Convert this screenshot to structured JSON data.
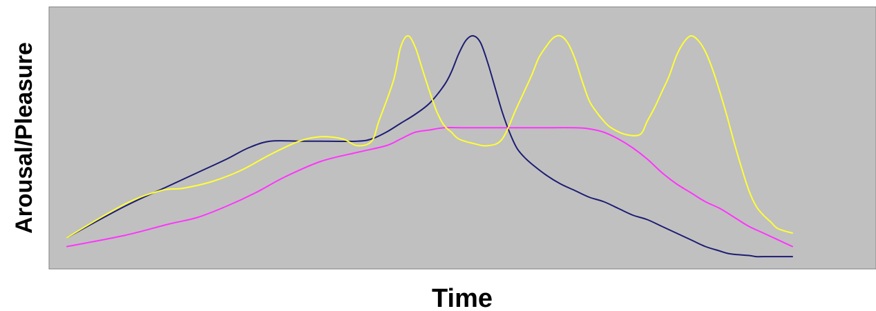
{
  "chart_data": {
    "type": "line",
    "title": "",
    "xlabel": "Time",
    "ylabel": "Arousal/Pleasure",
    "xlim": [
      0,
      100
    ],
    "ylim": [
      0,
      100
    ],
    "grid": false,
    "legend": "none",
    "background_color": "#c0c0c0",
    "series": [
      {
        "color": "#ffff33",
        "x": [
          0,
          8,
          13,
          16,
          20,
          24,
          28,
          32,
          35,
          38,
          40,
          42,
          43,
          45,
          46,
          47,
          48,
          49,
          50,
          51,
          52,
          53,
          54,
          56,
          58,
          60,
          62,
          64,
          65,
          66,
          67,
          68,
          69,
          70,
          71,
          72,
          73,
          74,
          75,
          77,
          79,
          80,
          81,
          82,
          83,
          84,
          85,
          86,
          87,
          88,
          89,
          90,
          91,
          92,
          93,
          94,
          95,
          96,
          97,
          98,
          100
        ],
        "y": [
          10,
          25,
          31,
          32,
          35,
          40,
          47,
          53,
          55,
          54,
          51,
          53,
          62,
          80,
          95,
          100,
          95,
          85,
          75,
          66,
          60,
          57,
          54,
          52,
          51,
          54,
          68,
          82,
          90,
          95,
          99,
          100,
          97,
          90,
          80,
          71,
          66,
          62,
          59,
          56,
          56,
          62,
          68,
          75,
          82,
          91,
          97,
          100,
          98,
          93,
          85,
          75,
          64,
          52,
          41,
          31,
          24,
          20,
          17,
          14,
          12
        ]
      },
      {
        "color": "#1c1c73",
        "x": [
          0,
          8,
          14,
          18,
          22,
          25,
          28,
          32,
          35,
          40,
          42,
          44,
          46,
          48,
          50,
          52,
          53,
          54,
          55,
          56,
          57,
          58,
          59,
          60,
          61,
          62,
          63,
          64,
          66,
          68,
          70,
          72,
          74,
          76,
          78,
          80,
          82,
          84,
          86,
          88,
          90,
          91,
          92,
          94,
          95,
          96,
          100
        ],
        "y": [
          10,
          24,
          33,
          39,
          45,
          50,
          53,
          53,
          53,
          53,
          54,
          57,
          61,
          65,
          70,
          78,
          84,
          92,
          98,
          100,
          97,
          88,
          77,
          66,
          57,
          50,
          46,
          43,
          38,
          34,
          31,
          28,
          26,
          23,
          20,
          18,
          15,
          12,
          9,
          6,
          4,
          3,
          2.5,
          2,
          1.5,
          1.5,
          1.5
        ]
      },
      {
        "color": "#ff33ff",
        "x": [
          0,
          8,
          14,
          18,
          22,
          26,
          30,
          35,
          40,
          44,
          46,
          48,
          50,
          52,
          55,
          60,
          65,
          70,
          72,
          74,
          76,
          78,
          80,
          82,
          84,
          86,
          88,
          90,
          92,
          94,
          96,
          100
        ],
        "y": [
          6,
          11,
          16,
          19,
          24,
          30,
          37,
          44,
          48,
          51,
          54,
          57,
          58,
          59,
          59,
          59,
          59,
          59,
          58.5,
          57,
          54,
          50,
          45,
          39,
          34,
          30,
          26,
          23,
          19,
          15,
          12,
          6
        ]
      }
    ]
  }
}
